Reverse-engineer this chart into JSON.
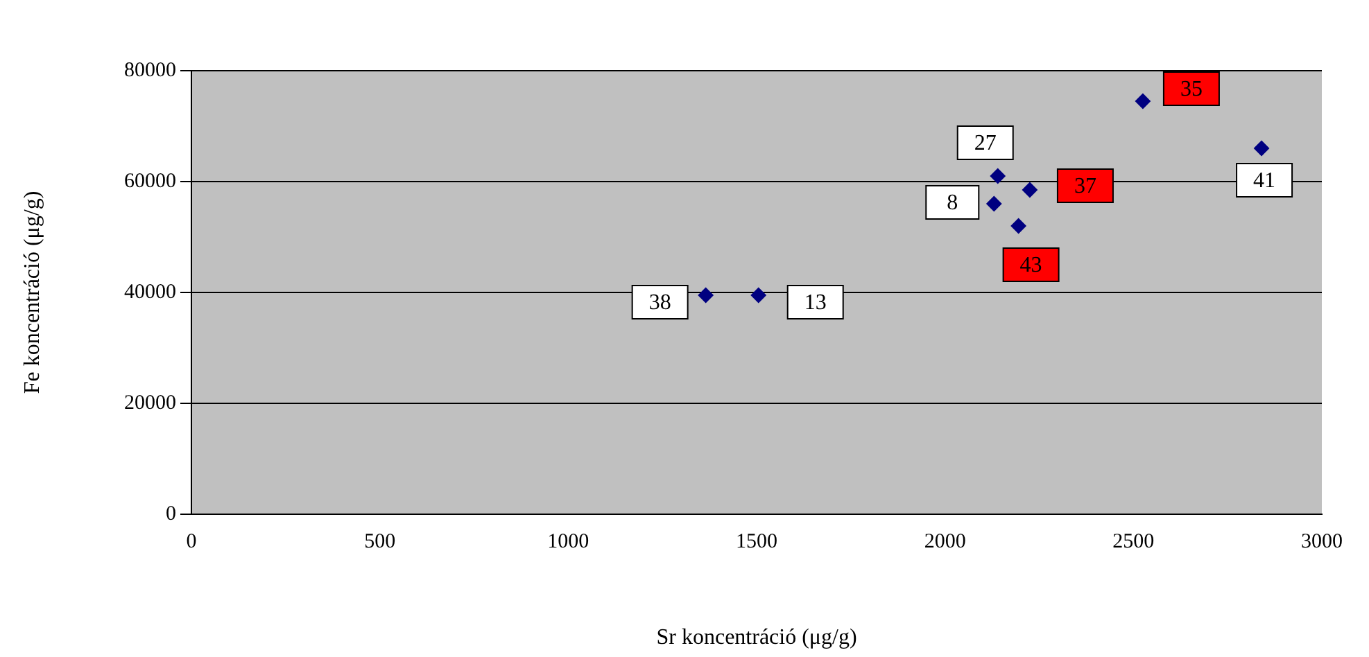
{
  "chart_data": {
    "type": "scatter",
    "xlabel": "Sr koncentráció (μg/g)",
    "ylabel": "Fe koncentráció (μg/g)",
    "series": [
      {
        "color": "#000080",
        "x": [
          1365,
          1505,
          2140,
          2130,
          2840
        ],
        "values": [
          39500,
          39500,
          61000,
          56000,
          66000
        ]
      },
      {
        "color": "#000080",
        "x": [
          2225,
          2195,
          2525
        ],
        "values": [
          58500,
          52000,
          74500
        ]
      }
    ],
    "annotations": [
      {
        "text": "38",
        "x": 1365,
        "y": 39500
      },
      {
        "text": "13",
        "x": 1505,
        "y": 39500
      },
      {
        "text": "27",
        "x": 2140,
        "y": 61000
      },
      {
        "text": "8",
        "x": 2130,
        "y": 56000
      },
      {
        "text": "41",
        "x": 2840,
        "y": 66000
      },
      {
        "text": "37",
        "x": 2225,
        "y": 58500
      },
      {
        "text": "43",
        "x": 2195,
        "y": 52000
      },
      {
        "text": "35",
        "x": 2525,
        "y": 74500
      }
    ],
    "xlim": [
      0,
      3000
    ],
    "xticks": [
      0,
      500,
      1000,
      1500,
      2000,
      2500,
      3000
    ],
    "ylim": [
      0,
      80000
    ],
    "yticks": [
      0,
      20000,
      40000,
      60000,
      80000
    ],
    "grid": "y",
    "marker": "diamond",
    "legend": false
  }
}
